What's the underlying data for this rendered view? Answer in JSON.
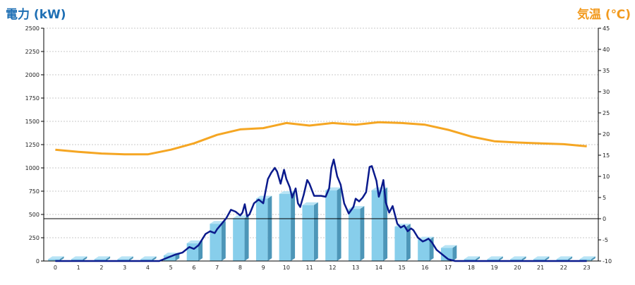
{
  "chart_data": {
    "type": "bar",
    "left_axis_title": "電力 (kW)",
    "right_axis_title": "気温 (℃)",
    "categories": [
      "0",
      "1",
      "2",
      "3",
      "4",
      "5",
      "6",
      "7",
      "8",
      "9",
      "10",
      "11",
      "12",
      "13",
      "14",
      "15",
      "16",
      "17",
      "18",
      "19",
      "20",
      "21",
      "22",
      "23"
    ],
    "y_left_ticks": [
      "0",
      "250",
      "500",
      "750",
      "1000",
      "1250",
      "1500",
      "1750",
      "2000",
      "2250",
      "2500"
    ],
    "y_right_ticks": [
      "-10",
      "-5",
      "0",
      "5",
      "10",
      "15",
      "20",
      "25",
      "30",
      "35",
      "40",
      "45"
    ],
    "ylim_left": [
      0,
      2500
    ],
    "ylim_right": [
      -10,
      45
    ],
    "grid": true,
    "colors": {
      "bar": "#87ceeb",
      "bar_side": "#4d96b8",
      "bar_top": "#b8e4f5",
      "power_line": "#0a1a8c",
      "temperature": "#f5a623",
      "axis": "#000000",
      "grid": "#c8c8c8"
    },
    "series": [
      {
        "kind": "bar",
        "axis": "left",
        "values": [
          20,
          20,
          20,
          20,
          20,
          60,
          190,
          400,
          460,
          670,
          720,
          600,
          760,
          560,
          760,
          370,
          230,
          140,
          20,
          20,
          20,
          20,
          20,
          20
        ]
      },
      {
        "kind": "line",
        "axis": "left",
        "x": [
          0,
          1,
          2,
          3,
          4,
          4.5,
          4.8,
          5.2,
          5.5,
          5.8,
          6.0,
          6.2,
          6.5,
          6.7,
          6.9,
          7.0,
          7.2,
          7.4,
          7.6,
          7.8,
          8.0,
          8.1,
          8.2,
          8.3,
          8.4,
          8.5,
          8.6,
          8.8,
          9.0,
          9.2,
          9.35,
          9.5,
          9.6,
          9.75,
          9.9,
          10.0,
          10.15,
          10.25,
          10.4,
          10.5,
          10.6,
          10.75,
          10.9,
          11.0,
          11.2,
          11.5,
          11.7,
          11.85,
          11.95,
          12.05,
          12.2,
          12.35,
          12.5,
          12.7,
          12.9,
          13.0,
          13.15,
          13.3,
          13.45,
          13.6,
          13.7,
          13.9,
          14.0,
          14.1,
          14.2,
          14.3,
          14.45,
          14.6,
          14.8,
          14.95,
          15.1,
          15.25,
          15.4,
          15.5,
          15.7,
          15.9,
          16.0,
          16.15,
          16.3,
          16.5,
          16.8,
          17.0,
          17.3,
          17.6,
          17.8,
          18.0,
          19.0,
          20.0,
          21.0,
          22.0,
          23.0
        ],
        "values": [
          0,
          0,
          0,
          0,
          0,
          0,
          30,
          70,
          90,
          150,
          130,
          170,
          290,
          320,
          300,
          340,
          400,
          460,
          550,
          530,
          490,
          520,
          610,
          480,
          500,
          560,
          620,
          660,
          620,
          880,
          950,
          1000,
          960,
          830,
          980,
          880,
          790,
          680,
          780,
          620,
          580,
          710,
          870,
          830,
          700,
          700,
          690,
          780,
          1000,
          1090,
          910,
          820,
          620,
          510,
          580,
          670,
          640,
          680,
          740,
          1010,
          1020,
          860,
          690,
          770,
          870,
          630,
          520,
          590,
          400,
          360,
          380,
          320,
          350,
          330,
          250,
          210,
          220,
          240,
          200,
          120,
          60,
          20,
          0,
          0,
          0,
          0,
          0,
          0,
          0,
          0,
          0
        ]
      },
      {
        "kind": "line",
        "axis": "right",
        "x": [
          0,
          1,
          2,
          3,
          4,
          5,
          6,
          7,
          8,
          9,
          10,
          11,
          12,
          13,
          14,
          15,
          16,
          17,
          18,
          19,
          20,
          21,
          22,
          23
        ],
        "values": [
          16.3,
          15.8,
          15.4,
          15.2,
          15.2,
          16.3,
          17.8,
          19.8,
          21.1,
          21.4,
          22.6,
          22.0,
          22.6,
          22.2,
          22.8,
          22.6,
          22.2,
          21.0,
          19.4,
          18.3,
          18.0,
          17.8,
          17.6,
          17.1
        ]
      }
    ]
  }
}
